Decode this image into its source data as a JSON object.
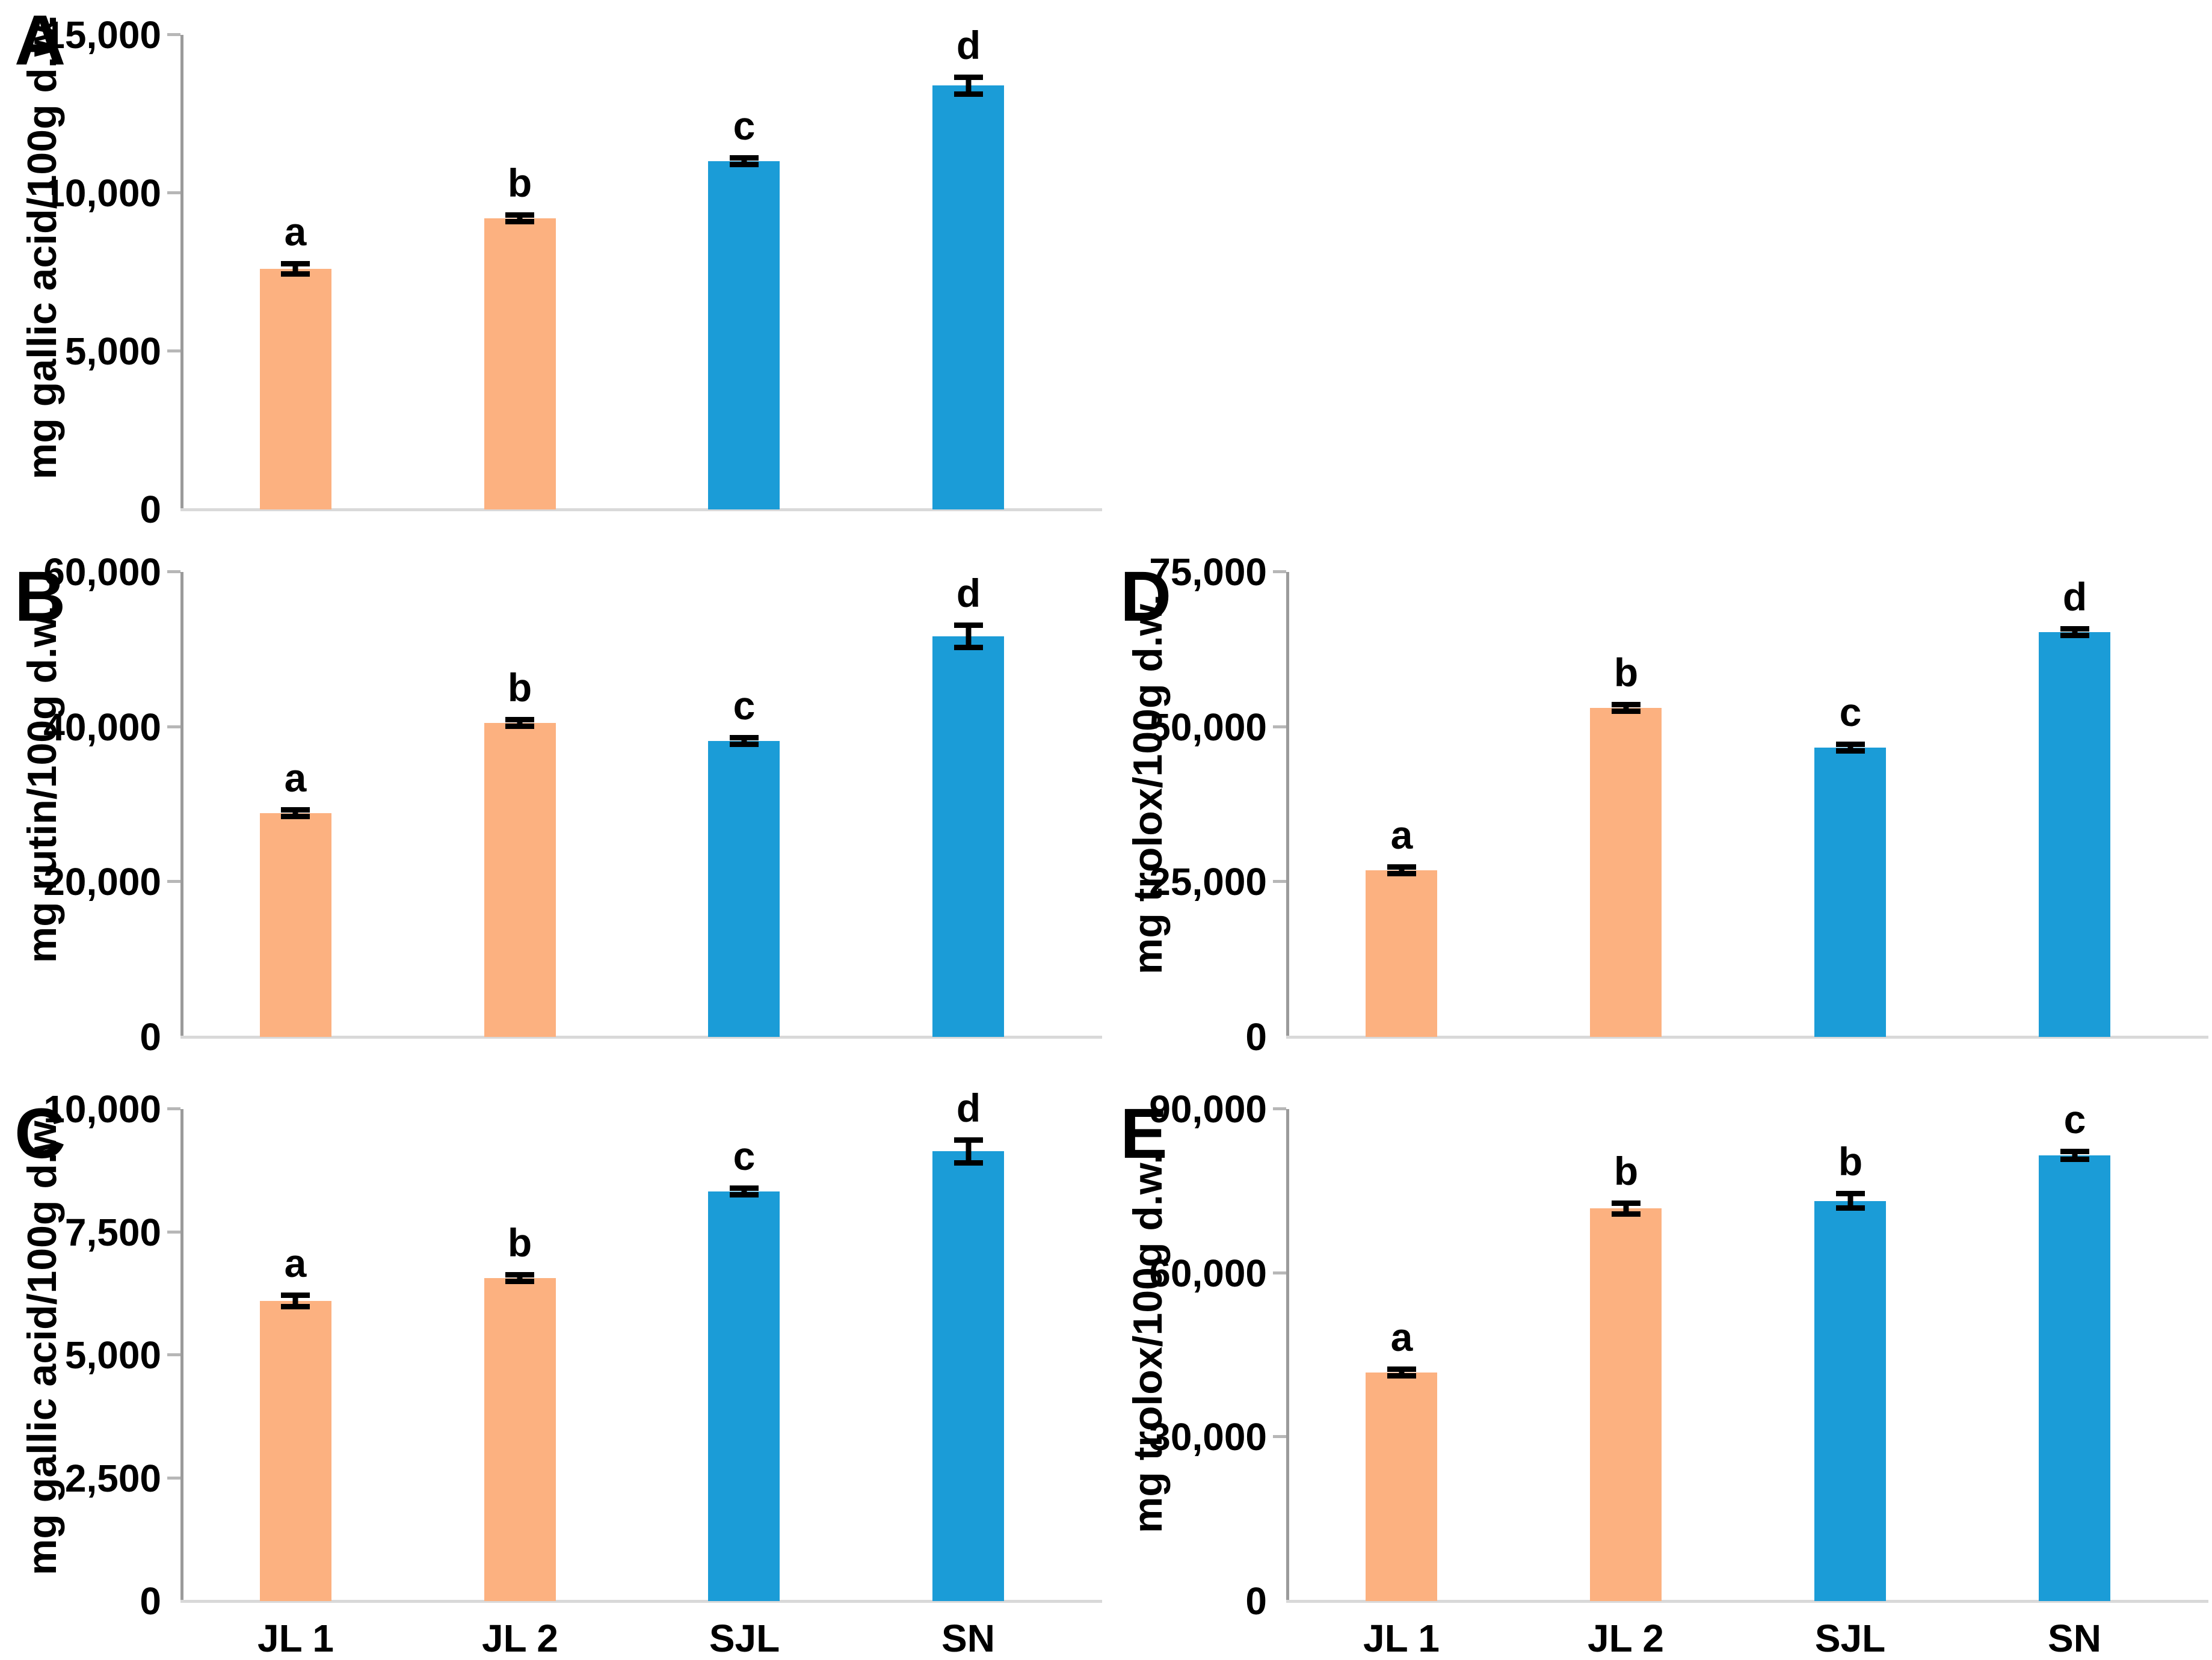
{
  "figure": {
    "background": "#ffffff",
    "text_color": "#000000",
    "axis_line_color": "#9b9b9b",
    "tick_mark_color": "#b7b7b7",
    "baseline_color": "#d9d9d9",
    "orange_bar_color": "#FCB180",
    "blue_bar_color": "#1B9CD7",
    "error_bar_color": "#000000"
  },
  "chart_data": [
    {
      "type": "bar",
      "panel": "A",
      "title": "",
      "xlabel": "",
      "ylabel": "mg gallic acid/100g d.w.",
      "categories": [
        "JL 1",
        "JL 2",
        "SJL",
        "SN"
      ],
      "values": [
        7600,
        9200,
        11000,
        13400
      ],
      "errors": [
        250,
        100,
        130,
        350
      ],
      "sig_letters": [
        "a",
        "b",
        "c",
        "d"
      ],
      "bar_colors": [
        "#FCB180",
        "#FCB180",
        "#1B9CD7",
        "#1B9CD7"
      ],
      "ylim": [
        0,
        15000
      ],
      "yticks": [
        0,
        5000,
        10000,
        15000
      ],
      "show_x_labels": false,
      "grid": false,
      "legend_position": "none"
    },
    {
      "type": "bar",
      "panel": "B",
      "title": "",
      "xlabel": "",
      "ylabel": "mg rutin/100g d.w.",
      "categories": [
        "JL 1",
        "JL 2",
        "SJL",
        "SN"
      ],
      "values": [
        28900,
        40500,
        38200,
        51700
      ],
      "errors": [
        350,
        450,
        350,
        1800
      ],
      "sig_letters": [
        "a",
        "b",
        "c",
        "d"
      ],
      "bar_colors": [
        "#FCB180",
        "#FCB180",
        "#1B9CD7",
        "#1B9CD7"
      ],
      "ylim": [
        0,
        60000
      ],
      "yticks": [
        0,
        20000,
        40000,
        60000
      ],
      "show_x_labels": false,
      "grid": false,
      "legend_position": "none"
    },
    {
      "type": "bar",
      "panel": "C",
      "title": "",
      "xlabel": "",
      "ylabel": "mg gallic acid/100g d.w.",
      "categories": [
        "JL 1",
        "JL 2",
        "SJL",
        "SN"
      ],
      "values": [
        6100,
        6570,
        8330,
        9140
      ],
      "errors": [
        170,
        70,
        110,
        290
      ],
      "sig_letters": [
        "a",
        "b",
        "c",
        "d"
      ],
      "bar_colors": [
        "#FCB180",
        "#FCB180",
        "#1B9CD7",
        "#1B9CD7"
      ],
      "ylim": [
        0,
        10000
      ],
      "yticks": [
        0,
        2500,
        5000,
        7500,
        10000
      ],
      "show_x_labels": true,
      "grid": false,
      "legend_position": "none"
    },
    {
      "type": "bar",
      "panel": "D",
      "title": "",
      "xlabel": "",
      "ylabel": "mg trolox/100g d.w.",
      "categories": [
        "JL 1",
        "JL 2",
        "SJL",
        "SN"
      ],
      "values": [
        26900,
        53100,
        46700,
        65300
      ],
      "errors": [
        280,
        700,
        900,
        700
      ],
      "sig_letters": [
        "a",
        "b",
        "c",
        "d"
      ],
      "bar_colors": [
        "#FCB180",
        "#FCB180",
        "#1B9CD7",
        "#1B9CD7"
      ],
      "ylim": [
        0,
        75000
      ],
      "yticks": [
        0,
        25000,
        50000,
        75000
      ],
      "show_x_labels": false,
      "grid": false,
      "legend_position": "none"
    },
    {
      "type": "bar",
      "panel": "E",
      "title": "",
      "xlabel": "",
      "ylabel": "mg trolox/100g d.w.",
      "categories": [
        "JL 1",
        "JL 2",
        "SJL",
        "SN"
      ],
      "values": [
        41800,
        71800,
        73200,
        81500
      ],
      "errors": [
        300,
        1500,
        1800,
        1200
      ],
      "sig_letters": [
        "a",
        "b",
        "b",
        "c"
      ],
      "bar_colors": [
        "#FCB180",
        "#FCB180",
        "#1B9CD7",
        "#1B9CD7"
      ],
      "ylim": [
        0,
        90000
      ],
      "yticks": [
        0,
        30000,
        60000,
        90000
      ],
      "show_x_labels": true,
      "grid": false,
      "legend_position": "none"
    }
  ]
}
